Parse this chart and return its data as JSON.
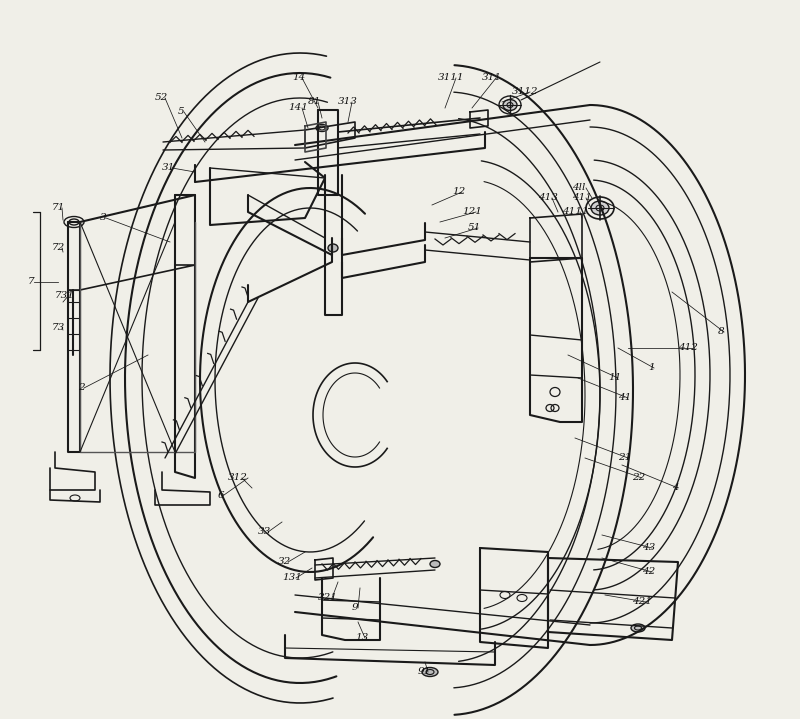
{
  "bg_color": "#f0efe8",
  "line_color": "#1a1a1a",
  "figsize": [
    8.0,
    7.19
  ],
  "dpi": 100,
  "labels": [
    [
      "1",
      648,
      368,
      618,
      348
    ],
    [
      "2",
      78,
      388,
      148,
      355
    ],
    [
      "3",
      100,
      218,
      170,
      242
    ],
    [
      "4",
      672,
      488,
      622,
      465
    ],
    [
      "5",
      178,
      112,
      205,
      142
    ],
    [
      "6",
      218,
      495,
      248,
      478
    ],
    [
      "7",
      28,
      282,
      58,
      282
    ],
    [
      "71",
      52,
      208,
      63,
      220
    ],
    [
      "72",
      52,
      248,
      63,
      252
    ],
    [
      "731",
      55,
      295,
      63,
      302
    ],
    [
      "73",
      52,
      328,
      63,
      330
    ],
    [
      "8",
      718,
      332,
      672,
      292
    ],
    [
      "9",
      352,
      608,
      360,
      588
    ],
    [
      "11",
      608,
      378,
      568,
      355
    ],
    [
      "12",
      452,
      192,
      432,
      205
    ],
    [
      "13",
      355,
      638,
      358,
      622
    ],
    [
      "14",
      292,
      78,
      318,
      108
    ],
    [
      "21",
      618,
      458,
      575,
      438
    ],
    [
      "22",
      632,
      478,
      585,
      458
    ],
    [
      "31",
      162,
      168,
      195,
      172
    ],
    [
      "32",
      278,
      562,
      305,
      552
    ],
    [
      "33",
      258,
      532,
      282,
      522
    ],
    [
      "41",
      618,
      398,
      578,
      378
    ],
    [
      "42",
      642,
      572,
      602,
      558
    ],
    [
      "43",
      642,
      548,
      602,
      535
    ],
    [
      "51",
      468,
      228,
      445,
      238
    ],
    [
      "52",
      155,
      98,
      182,
      138
    ],
    [
      "81",
      308,
      102,
      322,
      118
    ],
    [
      "91",
      418,
      672,
      425,
      662
    ],
    [
      "121",
      462,
      212,
      440,
      222
    ],
    [
      "131",
      282,
      578,
      312,
      568
    ],
    [
      "141",
      288,
      108,
      308,
      128
    ],
    [
      "311",
      482,
      78,
      472,
      108
    ],
    [
      "312",
      228,
      478,
      252,
      488
    ],
    [
      "313",
      338,
      102,
      348,
      122
    ],
    [
      "321",
      318,
      598,
      338,
      582
    ],
    [
      "411",
      572,
      198,
      592,
      210
    ],
    [
      "412",
      678,
      348,
      628,
      348
    ],
    [
      "413",
      538,
      198,
      558,
      212
    ],
    [
      "421",
      632,
      602,
      605,
      595
    ],
    [
      "3111",
      438,
      78,
      445,
      108
    ],
    [
      "3112",
      512,
      92,
      502,
      102
    ],
    [
      "4111",
      562,
      212,
      582,
      218
    ],
    [
      "4ll",
      572,
      188,
      592,
      198
    ]
  ]
}
